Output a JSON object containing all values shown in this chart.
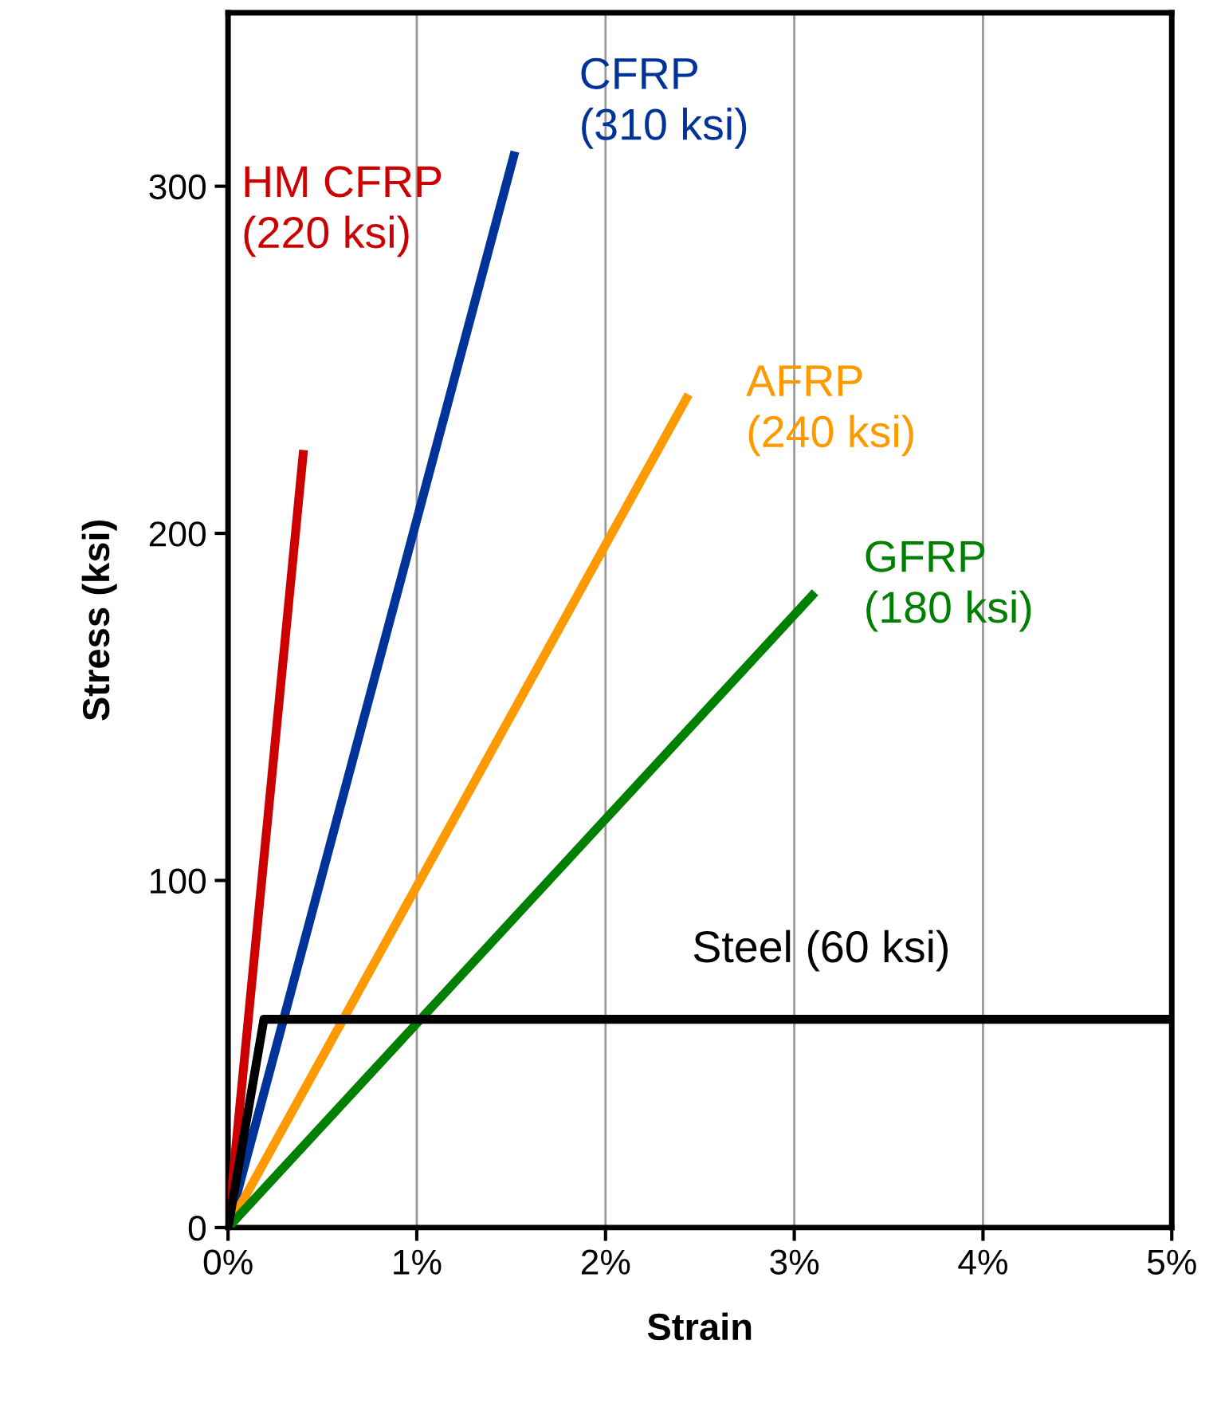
{
  "chart_data": {
    "type": "line",
    "xlabel": "Strain",
    "ylabel": "Stress (ksi)",
    "xlim": [
      0,
      5
    ],
    "ylim": [
      0,
      350
    ],
    "xticks": [
      {
        "value": 0,
        "label": "0%"
      },
      {
        "value": 1,
        "label": "1%"
      },
      {
        "value": 2,
        "label": "2%"
      },
      {
        "value": 3,
        "label": "3%"
      },
      {
        "value": 4,
        "label": "4%"
      },
      {
        "value": 5,
        "label": "5%"
      }
    ],
    "yticks": [
      0,
      100,
      200,
      300
    ],
    "grid": "x",
    "legend": false,
    "marker": "none",
    "line_style": "solid",
    "series": [
      {
        "name": "HM CFRP\n(220 ksi)",
        "color": "#cc0000",
        "x": [
          0,
          0.4
        ],
        "values": [
          0,
          224
        ]
      },
      {
        "name": "CFRP\n(310 ksi)",
        "color": "#003399",
        "x": [
          0,
          1.52
        ],
        "values": [
          0,
          310
        ]
      },
      {
        "name": "AFRP\n(240 ksi)",
        "color": "#ff9900",
        "x": [
          0,
          2.44
        ],
        "values": [
          0,
          240
        ]
      },
      {
        "name": "GFRP\n(180 ksi)",
        "color": "#008000",
        "x": [
          0,
          3.11
        ],
        "values": [
          0,
          183
        ]
      },
      {
        "name": "Steel (60 ksi)",
        "color": "#000000",
        "x": [
          0,
          0.19,
          5
        ],
        "values": [
          0,
          60,
          60
        ]
      }
    ]
  }
}
